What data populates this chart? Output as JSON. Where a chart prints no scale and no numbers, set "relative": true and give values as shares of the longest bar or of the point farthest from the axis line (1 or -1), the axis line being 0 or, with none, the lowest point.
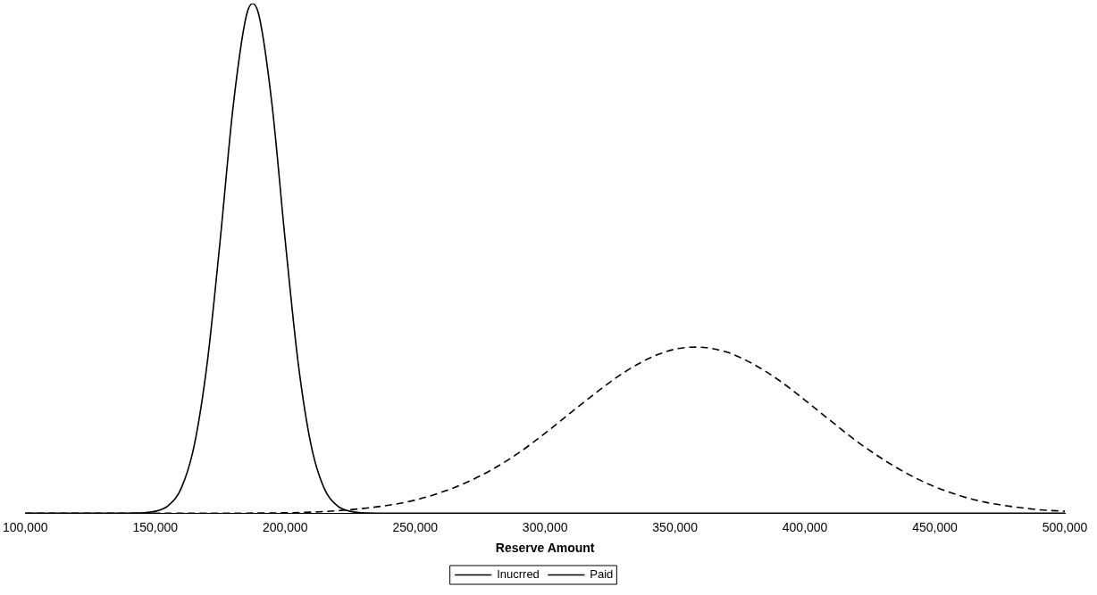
{
  "chart_data": {
    "type": "line",
    "relative": true,
    "xlabel": "Reserve Amount",
    "xlim": [
      100000,
      500000
    ],
    "xticks": [
      {
        "value": 100000,
        "label": "100,000"
      },
      {
        "value": 150000,
        "label": "150,000"
      },
      {
        "value": 200000,
        "label": "200,000"
      },
      {
        "value": 250000,
        "label": "250,000"
      },
      {
        "value": 300000,
        "label": "300,000"
      },
      {
        "value": 350000,
        "label": "350,000"
      },
      {
        "value": 400000,
        "label": "400,000"
      },
      {
        "value": 450000,
        "label": "450,000"
      },
      {
        "value": 500000,
        "label": "500,000"
      }
    ],
    "legend": "bottom",
    "marker": "none",
    "grid": false,
    "series": [
      {
        "name": "Inucrred",
        "color": "#000000",
        "line_style": "solid",
        "x": [
          100000,
          140000,
          150000,
          155000,
          160000,
          165000,
          170000,
          175000,
          180000,
          185000,
          187500,
          190000,
          195000,
          200000,
          205000,
          210000,
          215000,
          220000,
          225000,
          235000,
          500000
        ],
        "values": [
          0,
          0,
          0.004,
          0.015,
          0.049,
          0.133,
          0.295,
          0.536,
          0.799,
          0.975,
          1,
          0.975,
          0.799,
          0.536,
          0.295,
          0.133,
          0.049,
          0.015,
          0.004,
          0,
          0
        ]
      },
      {
        "name": "Paid",
        "color": "#000000",
        "line_style": "dashed",
        "x": [
          100000,
          150000,
          200000,
          220000,
          240000,
          250000,
          260000,
          270000,
          280000,
          290000,
          300000,
          310000,
          320000,
          330000,
          340000,
          350000,
          358000,
          370000,
          380000,
          390000,
          400000,
          410000,
          420000,
          430000,
          440000,
          450000,
          460000,
          470000,
          480000,
          490000,
          500000
        ],
        "values": [
          0,
          0,
          0.001,
          0.005,
          0.016,
          0.026,
          0.041,
          0.061,
          0.087,
          0.119,
          0.157,
          0.198,
          0.238,
          0.275,
          0.304,
          0.322,
          0.326,
          0.316,
          0.293,
          0.261,
          0.222,
          0.181,
          0.141,
          0.106,
          0.076,
          0.052,
          0.034,
          0.021,
          0.013,
          0.007,
          0.004
        ]
      }
    ]
  }
}
